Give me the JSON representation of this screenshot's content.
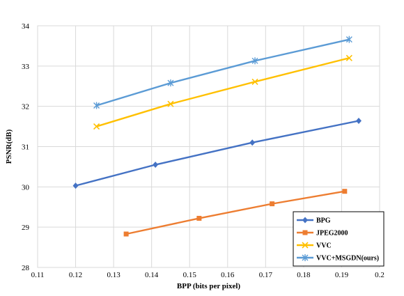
{
  "chart_data": {
    "type": "line",
    "xlabel": "BPP (bits per pixel)",
    "ylabel": "PSNR(dB)",
    "xlim": [
      0.11,
      0.2
    ],
    "ylim": [
      28,
      34
    ],
    "xticks": [
      0.11,
      0.12,
      0.13,
      0.14,
      0.15,
      0.16,
      0.17,
      0.18,
      0.19,
      0.2
    ],
    "xtick_labels": [
      "0.11",
      "0.12",
      "0.13",
      "0.14",
      "0.15",
      "0.16",
      "0.17",
      "0.18",
      "0.19",
      "0.2"
    ],
    "yticks": [
      28,
      29,
      30,
      31,
      32,
      33,
      34
    ],
    "ytick_labels": [
      "28",
      "29",
      "30",
      "31",
      "32",
      "33",
      "34"
    ],
    "grid": true,
    "legend_position": "bottom-right",
    "series": [
      {
        "name": "BPG",
        "color": "#4472C4",
        "marker": "diamond",
        "x": [
          0.12,
          0.141,
          0.1665,
          0.1945
        ],
        "y": [
          30.03,
          30.55,
          31.1,
          31.64
        ]
      },
      {
        "name": "JPEG2000",
        "color": "#ED7D31",
        "marker": "square",
        "x": [
          0.1333,
          0.1525,
          0.1717,
          0.1908
        ],
        "y": [
          28.83,
          29.22,
          29.58,
          29.89
        ]
      },
      {
        "name": "VVC",
        "color": "#FFC000",
        "marker": "x",
        "x": [
          0.1255,
          0.145,
          0.1672,
          0.192
        ],
        "y": [
          31.5,
          32.06,
          32.61,
          33.2
        ]
      },
      {
        "name": "VVC+MSGDN(ours)",
        "color": "#5B9BD5",
        "marker": "asterisk",
        "x": [
          0.1255,
          0.145,
          0.1672,
          0.192
        ],
        "y": [
          32.02,
          32.58,
          33.13,
          33.66
        ]
      }
    ]
  }
}
